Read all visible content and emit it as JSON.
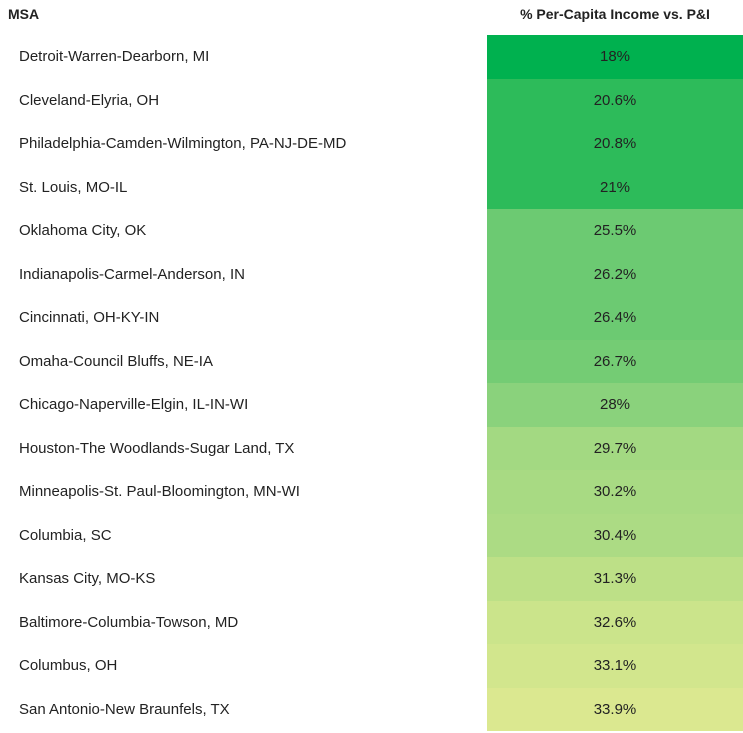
{
  "chart_data": {
    "type": "table",
    "columns": [
      "MSA",
      "% Per-Capita Income vs. P&I"
    ],
    "rows": [
      {
        "msa": "Detroit-Warren-Dearborn, MI",
        "label": "18%",
        "value": 18,
        "color": "#00b14f"
      },
      {
        "msa": "Cleveland-Elyria, OH",
        "label": "20.6%",
        "value": 20.6,
        "color": "#2dbb5a"
      },
      {
        "msa": "Philadelphia-Camden-Wilmington, PA-NJ-DE-MD",
        "label": "20.8%",
        "value": 20.8,
        "color": "#2dbb5a"
      },
      {
        "msa": "St. Louis, MO-IL",
        "label": "21%",
        "value": 21,
        "color": "#2dbb5a"
      },
      {
        "msa": "Oklahoma City, OK",
        "label": "25.5%",
        "value": 25.5,
        "color": "#6cca72"
      },
      {
        "msa": "Indianapolis-Carmel-Anderson, IN",
        "label": "26.2%",
        "value": 26.2,
        "color": "#6cca72"
      },
      {
        "msa": "Cincinnati, OH-KY-IN",
        "label": "26.4%",
        "value": 26.4,
        "color": "#6cca72"
      },
      {
        "msa": "Omaha-Council Bluffs, NE-IA",
        "label": "26.7%",
        "value": 26.7,
        "color": "#74cc74"
      },
      {
        "msa": "Chicago-Naperville-Elgin, IL-IN-WI",
        "label": "28%",
        "value": 28,
        "color": "#8ad27c"
      },
      {
        "msa": "Houston-The Woodlands-Sugar Land, TX",
        "label": "29.7%",
        "value": 29.7,
        "color": "#a3d982"
      },
      {
        "msa": "Minneapolis-St. Paul-Bloomington, MN-WI",
        "label": "30.2%",
        "value": 30.2,
        "color": "#a8da83"
      },
      {
        "msa": "Columbia, SC",
        "label": "30.4%",
        "value": 30.4,
        "color": "#acdb84"
      },
      {
        "msa": "Kansas City, MO-KS",
        "label": "31.3%",
        "value": 31.3,
        "color": "#bde087"
      },
      {
        "msa": "Baltimore-Columbia-Towson, MD",
        "label": "32.6%",
        "value": 32.6,
        "color": "#cbe48b"
      },
      {
        "msa": "Columbus, OH",
        "label": "33.1%",
        "value": 33.1,
        "color": "#d2e68d"
      },
      {
        "msa": "San Antonio-New Braunfels, TX",
        "label": "33.9%",
        "value": 33.9,
        "color": "#dbe890"
      }
    ]
  }
}
